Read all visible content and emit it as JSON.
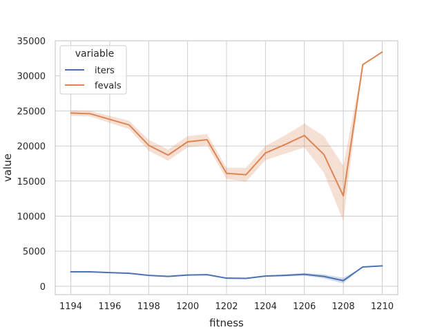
{
  "chart_data": {
    "type": "line",
    "xlabel": "fitness",
    "ylabel": "value",
    "xlim": [
      1193.2,
      1210.8
    ],
    "ylim": [
      -1200,
      35000
    ],
    "xticks": [
      1194,
      1196,
      1198,
      1200,
      1202,
      1204,
      1206,
      1208,
      1210
    ],
    "yticks": [
      0,
      5000,
      10000,
      15000,
      20000,
      25000,
      30000,
      35000
    ],
    "grid": true,
    "legend": {
      "title": "variable",
      "placement": "top-left"
    },
    "colors": {
      "iters": "#4c72b0",
      "fevals": "#dd8452"
    },
    "x": [
      1194,
      1195,
      1196,
      1197,
      1198,
      1199,
      1200,
      1201,
      1202,
      1203,
      1204,
      1205,
      1206,
      1207,
      1208,
      1209,
      1210
    ],
    "series": [
      {
        "name": "iters",
        "values": [
          2050,
          2050,
          1950,
          1850,
          1550,
          1400,
          1600,
          1650,
          1150,
          1120,
          1450,
          1550,
          1700,
          1400,
          800,
          2750,
          2900
        ],
        "lower": [
          2000,
          2000,
          1900,
          1800,
          1450,
          1300,
          1500,
          1550,
          1050,
          1020,
          1350,
          1400,
          1500,
          1100,
          400,
          2750,
          2900
        ],
        "upper": [
          2100,
          2100,
          2000,
          1900,
          1650,
          1500,
          1700,
          1750,
          1250,
          1220,
          1550,
          1700,
          1900,
          1700,
          1200,
          2750,
          2900
        ]
      },
      {
        "name": "fevals",
        "values": [
          24700,
          24600,
          23800,
          23000,
          20100,
          18700,
          20600,
          20900,
          16100,
          15900,
          19000,
          20200,
          21500,
          18800,
          12900,
          31600,
          33400
        ],
        "lower": [
          24300,
          24200,
          23300,
          22400,
          19300,
          17900,
          19800,
          20100,
          15300,
          14900,
          18000,
          18900,
          19800,
          16200,
          9300,
          31600,
          33400
        ],
        "upper": [
          25100,
          25000,
          24300,
          23600,
          20900,
          19500,
          21400,
          21700,
          16900,
          16900,
          20000,
          21500,
          23200,
          21400,
          17200,
          31600,
          33400
        ]
      }
    ]
  }
}
